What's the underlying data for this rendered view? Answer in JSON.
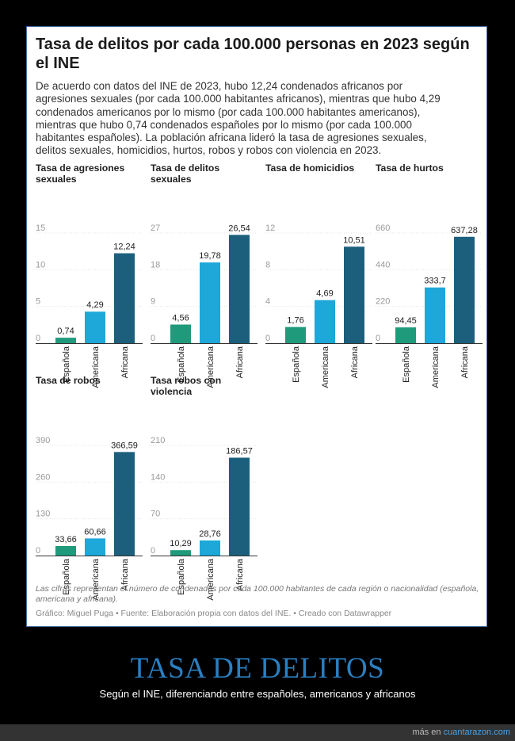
{
  "card": {
    "title": "Tasa de delitos por cada 100.000 personas en 2023 según el INE",
    "description": "De acuerdo con datos del INE de 2023, hubo 12,24 condenados africanos por agresiones sexuales (por cada 100.000 habitantes africanos), mientras que hubo 4,29 condenados americanos por lo mismo (por cada 100.000 habitantes americanos), mientras que hubo 0,74 condenados españoles por lo mismo (por cada 100.000 habitantes españoles). La población africana lideró la tasa de agresiones sexuales, delitos sexuales, homicidios, hurtos, robos y robos con violencia en 2023.",
    "note": "Las cifras representan el número de condenados por cada 100.000 habitantes de cada región o nacionalidad (española, americana y africana).",
    "credit": "Gráfico: Miguel Puga • Fuente: Elaboración propia con datos del INE. • Creado con Datawrapper"
  },
  "colors": {
    "espanola": "#1f9a7a",
    "americana": "#1ea7d9",
    "africana": "#1c5f7d"
  },
  "chart_data": [
    {
      "type": "bar",
      "title": "Tasa de agresiones sexuales",
      "categories": [
        "Española",
        "Americana",
        "Africana"
      ],
      "values": [
        0.74,
        4.29,
        12.24
      ],
      "value_labels": [
        "0,74",
        "4,29",
        "12,24"
      ],
      "ylim": [
        0,
        15
      ],
      "yticks": [
        0,
        5,
        10,
        15
      ],
      "ytick_labels": [
        "0",
        "5",
        "10",
        "15"
      ]
    },
    {
      "type": "bar",
      "title": "Tasa de delitos sexuales",
      "categories": [
        "Española",
        "Americana",
        "Africana"
      ],
      "values": [
        4.56,
        19.78,
        26.54
      ],
      "value_labels": [
        "4,56",
        "19,78",
        "26,54"
      ],
      "ylim": [
        0,
        27
      ],
      "yticks": [
        0,
        9,
        18,
        27
      ],
      "ytick_labels": [
        "0",
        "9",
        "18",
        "27"
      ]
    },
    {
      "type": "bar",
      "title": "Tasa de homicidios",
      "categories": [
        "Española",
        "Americana",
        "Africana"
      ],
      "values": [
        1.76,
        4.69,
        10.51
      ],
      "value_labels": [
        "1,76",
        "4,69",
        "10,51"
      ],
      "ylim": [
        0,
        12
      ],
      "yticks": [
        0,
        4,
        8,
        12
      ],
      "ytick_labels": [
        "0",
        "4",
        "8",
        "12"
      ]
    },
    {
      "type": "bar",
      "title": "Tasa de hurtos",
      "categories": [
        "Española",
        "Americana",
        "Africana"
      ],
      "values": [
        94.45,
        333.7,
        637.28
      ],
      "value_labels": [
        "94,45",
        "333,7",
        "637,28"
      ],
      "ylim": [
        0,
        660
      ],
      "yticks": [
        0,
        220,
        440,
        660
      ],
      "ytick_labels": [
        "0",
        "220",
        "440",
        "660"
      ]
    },
    {
      "type": "bar",
      "title": "Tasa de robos",
      "categories": [
        "Española",
        "Americana",
        "Africana"
      ],
      "values": [
        33.66,
        60.66,
        366.59
      ],
      "value_labels": [
        "33,66",
        "60,66",
        "366,59"
      ],
      "ylim": [
        0,
        390
      ],
      "yticks": [
        0,
        130,
        260,
        390
      ],
      "ytick_labels": [
        "0",
        "130",
        "260",
        "390"
      ]
    },
    {
      "type": "bar",
      "title": "Tasa robos con violencia",
      "categories": [
        "Española",
        "Americana",
        "Africana"
      ],
      "values": [
        10.29,
        28.76,
        186.57
      ],
      "value_labels": [
        "10,29",
        "28,76",
        "186,57"
      ],
      "ylim": [
        0,
        210
      ],
      "yticks": [
        0,
        70,
        140,
        210
      ],
      "ytick_labels": [
        "0",
        "70",
        "140",
        "210"
      ]
    }
  ],
  "caption": {
    "title": "TASA DE DELITOS",
    "subtitle": "Según el INE, diferenciando entre españoles, americanos y africanos"
  },
  "footer": {
    "prefix": "más en ",
    "link": "cuantarazon.com"
  }
}
